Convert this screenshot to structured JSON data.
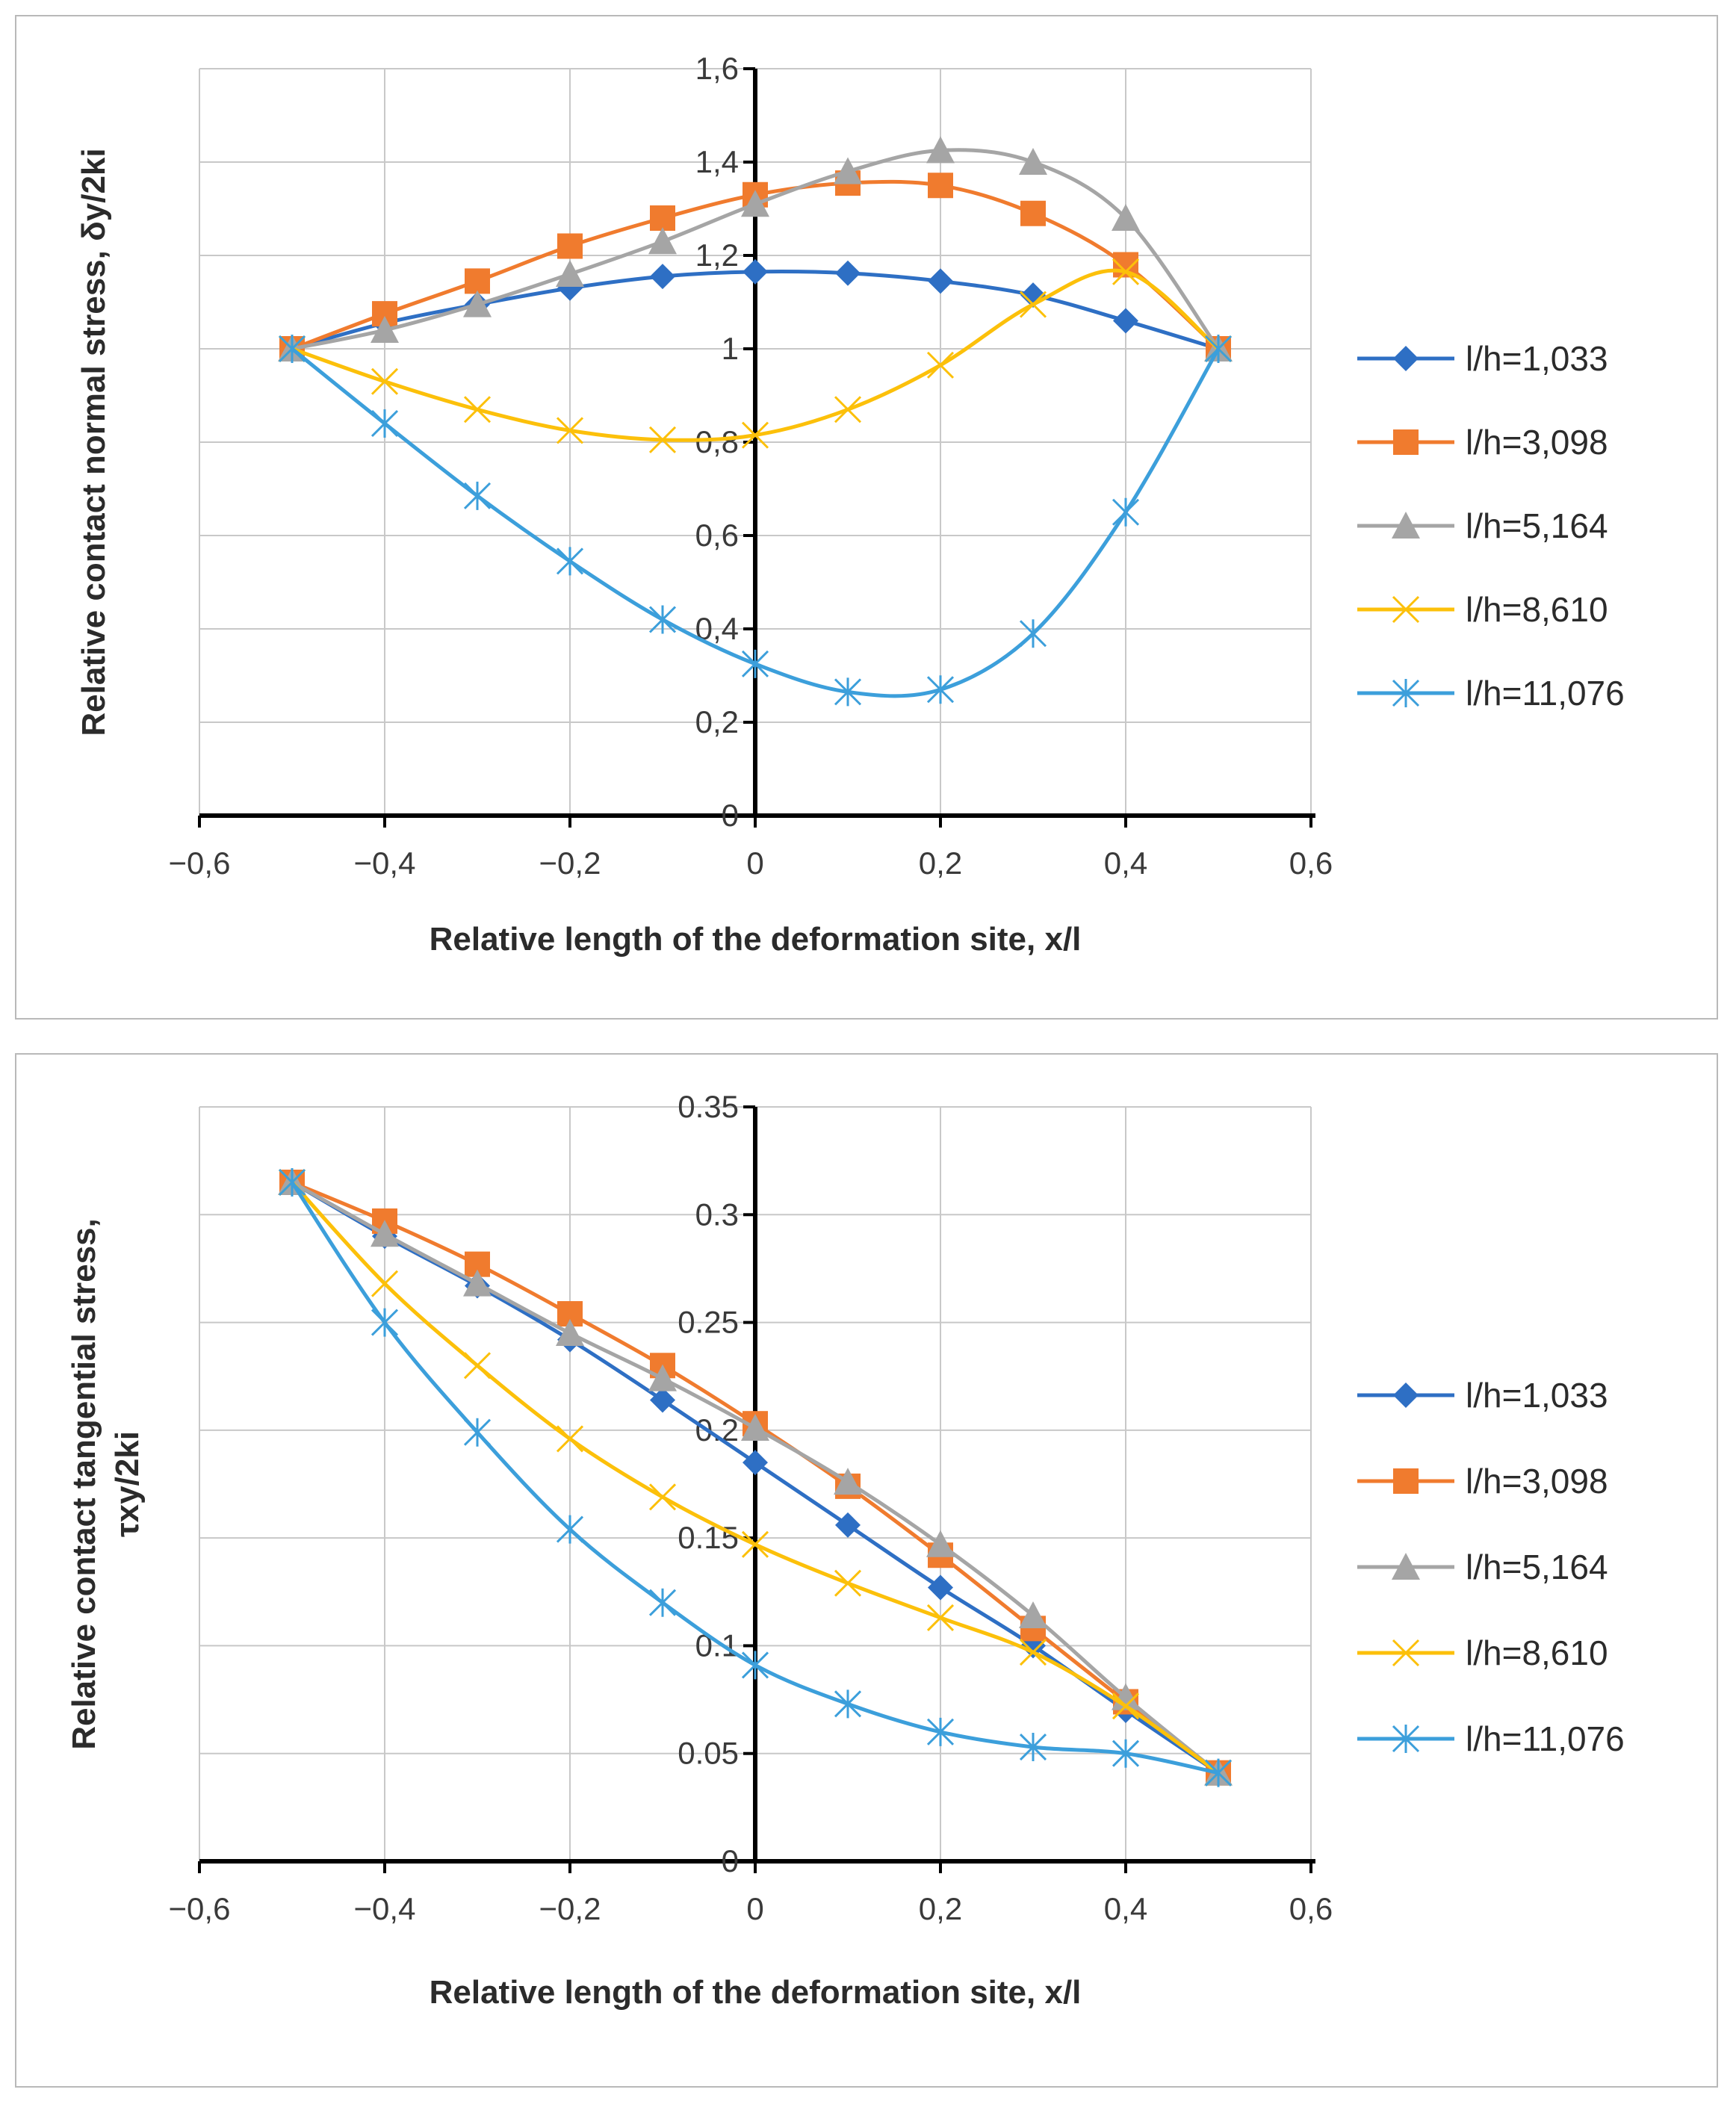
{
  "chart_data": [
    {
      "type": "line",
      "title": "",
      "xlabel": "Relative length of the deformation site, x/l",
      "ylabel": "Relative contact normal stress, δy/2ki",
      "xlim": [
        -0.6,
        0.6
      ],
      "ylim": [
        0,
        1.6
      ],
      "x_ticks": [
        "−0,6",
        "−0,4",
        "−0,2",
        "0",
        "0,2",
        "0,4",
        "0,6"
      ],
      "y_ticks": [
        "0",
        "0,2",
        "0,4",
        "0,6",
        "0,8",
        "1",
        "1,2",
        "1,4",
        "1,6"
      ],
      "grid": true,
      "legend_position": "right",
      "x": [
        -0.5,
        -0.4,
        -0.3,
        -0.2,
        -0.1,
        0,
        0.1,
        0.2,
        0.3,
        0.4,
        0.5
      ],
      "series": [
        {
          "name": "l/h=1,033",
          "color": "#2e6fc4",
          "marker": "diamond",
          "values": [
            1.0,
            1.055,
            1.095,
            1.13,
            1.155,
            1.165,
            1.162,
            1.145,
            1.115,
            1.06,
            1.0
          ]
        },
        {
          "name": "l/h=3,098",
          "color": "#f07b2e",
          "marker": "square",
          "values": [
            1.0,
            1.075,
            1.145,
            1.22,
            1.28,
            1.33,
            1.355,
            1.35,
            1.29,
            1.18,
            1.0
          ]
        },
        {
          "name": "l/h=5,164",
          "color": "#a5a5a5",
          "marker": "triangle",
          "values": [
            1.0,
            1.04,
            1.095,
            1.16,
            1.23,
            1.31,
            1.38,
            1.425,
            1.4,
            1.28,
            1.0
          ]
        },
        {
          "name": "l/h=8,610",
          "color": "#fcc00a",
          "marker": "x",
          "values": [
            1.0,
            0.93,
            0.87,
            0.825,
            0.805,
            0.815,
            0.87,
            0.965,
            1.095,
            1.165,
            1.0
          ]
        },
        {
          "name": "l/h=11,076",
          "color": "#3c9fdb",
          "marker": "star",
          "values": [
            1.0,
            0.84,
            0.685,
            0.545,
            0.42,
            0.325,
            0.265,
            0.27,
            0.39,
            0.65,
            1.0
          ]
        }
      ]
    },
    {
      "type": "line",
      "title": "",
      "xlabel": "Relative length of the deformation site, x/l",
      "ylabel": "Relative contact tangential stress, τxy/2ki",
      "ylabel_lines": [
        "Relative contact tangential stress,",
        "τxy/2ki"
      ],
      "xlim": [
        -0.6,
        0.6
      ],
      "ylim": [
        0,
        0.35
      ],
      "x_ticks": [
        "−0,6",
        "−0,4",
        "−0,2",
        "0",
        "0,2",
        "0,4",
        "0,6"
      ],
      "y_ticks": [
        "0",
        "0.05",
        "0.1",
        "0.15",
        "0.2",
        "0.25",
        "0.3",
        "0.35"
      ],
      "grid": true,
      "legend_position": "right",
      "x": [
        -0.5,
        -0.4,
        -0.3,
        -0.2,
        -0.1,
        0,
        0.1,
        0.2,
        0.3,
        0.4,
        0.5
      ],
      "series": [
        {
          "name": "l/h=1,033",
          "color": "#2e6fc4",
          "marker": "diamond",
          "values": [
            0.315,
            0.29,
            0.267,
            0.242,
            0.214,
            0.185,
            0.156,
            0.127,
            0.1,
            0.07,
            0.041
          ]
        },
        {
          "name": "l/h=3,098",
          "color": "#f07b2e",
          "marker": "square",
          "values": [
            0.315,
            0.297,
            0.277,
            0.254,
            0.23,
            0.203,
            0.174,
            0.142,
            0.108,
            0.074,
            0.041
          ]
        },
        {
          "name": "l/h=5,164",
          "color": "#a5a5a5",
          "marker": "triangle",
          "values": [
            0.315,
            0.291,
            0.268,
            0.245,
            0.224,
            0.201,
            0.176,
            0.147,
            0.114,
            0.076,
            0.041
          ]
        },
        {
          "name": "l/h=8,610",
          "color": "#fcc00a",
          "marker": "x",
          "values": [
            0.315,
            0.268,
            0.23,
            0.196,
            0.169,
            0.147,
            0.129,
            0.113,
            0.097,
            0.072,
            0.041
          ]
        },
        {
          "name": "l/h=11,076",
          "color": "#3c9fdb",
          "marker": "star",
          "values": [
            0.315,
            0.25,
            0.199,
            0.154,
            0.12,
            0.091,
            0.073,
            0.06,
            0.053,
            0.05,
            0.041
          ]
        }
      ]
    }
  ]
}
